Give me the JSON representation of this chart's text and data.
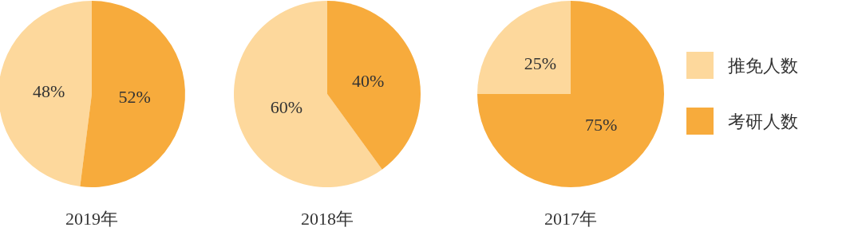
{
  "chart_data": [
    {
      "type": "pie",
      "title": "2019年",
      "categories": [
        null,
        null
      ],
      "values": [
        48,
        52
      ],
      "colors": [
        "#fdd89c",
        "#f7ab3c"
      ],
      "value_labels": [
        "48%",
        "52%"
      ]
    },
    {
      "type": "pie",
      "title": "2018年",
      "categories": [
        null,
        null
      ],
      "values": [
        60,
        40
      ],
      "colors": [
        "#fdd89c",
        "#f7ab3c"
      ],
      "value_labels": [
        "60%",
        "40%"
      ]
    },
    {
      "type": "pie",
      "title": "2017年",
      "categories": [
        "推免人数",
        "考研人数"
      ],
      "values": [
        25,
        75
      ],
      "colors": [
        "#fdd89c",
        "#f7ab3c"
      ],
      "value_labels": [
        "25%",
        "75%"
      ],
      "legend": "right"
    }
  ]
}
